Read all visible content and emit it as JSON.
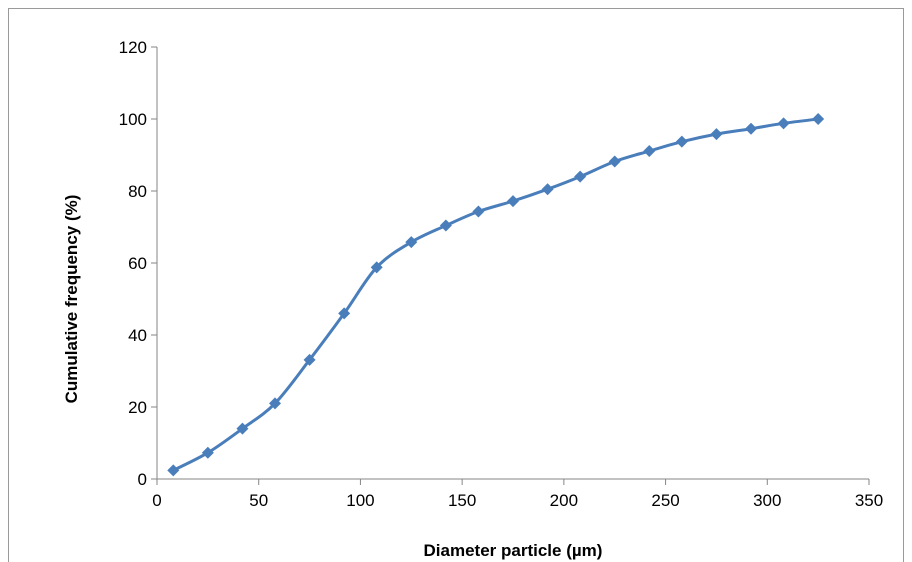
{
  "chart_data": {
    "type": "line",
    "title": "",
    "xlabel": "Diameter particle (µm)",
    "ylabel": "Cumulative frequency (%)",
    "xlim": [
      0,
      350
    ],
    "ylim": [
      0,
      120
    ],
    "x_ticks": [
      "0",
      "50",
      "100",
      "150",
      "200",
      "250",
      "300",
      "350"
    ],
    "y_ticks": [
      "0",
      "20",
      "40",
      "60",
      "80",
      "100",
      "120"
    ],
    "grid": false,
    "legend": "none",
    "marker": "diamond",
    "color": "#4a7ebb",
    "series": [
      {
        "x": [
          8,
          25,
          42,
          58,
          75,
          92,
          108,
          125,
          142,
          158,
          175,
          192,
          208,
          225,
          242,
          258,
          275,
          292,
          308,
          325
        ],
        "y": [
          2.4,
          7.3,
          14,
          21,
          33.1,
          46,
          58.8,
          65.8,
          70.4,
          74.3,
          77.2,
          80.5,
          84,
          88.2,
          91.1,
          93.7,
          95.8,
          97.3,
          98.8,
          100
        ]
      }
    ]
  }
}
